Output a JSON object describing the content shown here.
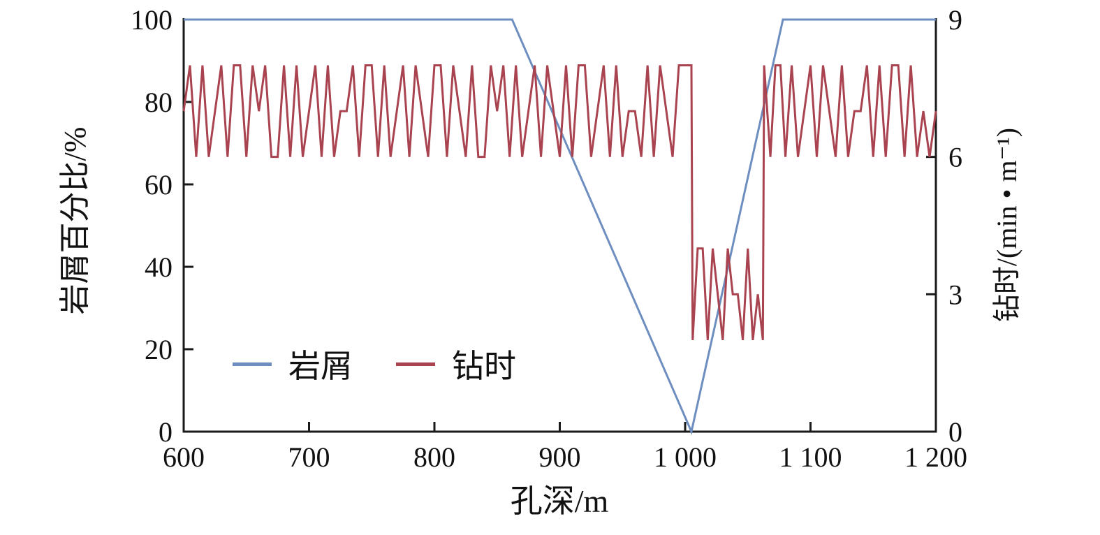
{
  "chart_data": {
    "type": "line",
    "title": "",
    "xlabel": "孔深/m",
    "ylabel_left": "岩屑百分比/%",
    "ylabel_right": "钻时/(min • m⁻¹)",
    "x_range": [
      600,
      1200
    ],
    "y_left_range": [
      0,
      100
    ],
    "y_right_range": [
      0,
      9
    ],
    "x_ticks": [
      600,
      700,
      800,
      900,
      1000,
      1100,
      1200
    ],
    "x_tick_labels": [
      "600",
      "700",
      "800",
      "900",
      "1 000",
      "1 100",
      "1 200"
    ],
    "y_left_ticks": [
      0,
      20,
      40,
      60,
      80,
      100
    ],
    "y_left_tick_labels": [
      "0",
      "20",
      "40",
      "60",
      "80",
      "100"
    ],
    "y_right_ticks": [
      0,
      3,
      6,
      9
    ],
    "y_right_tick_labels": [
      "0",
      "3",
      "6",
      "9"
    ],
    "grid": false,
    "legend_position": "inside-lower-left",
    "series": [
      {
        "id": "cuttings",
        "name": "岩屑",
        "axis": "left",
        "unit": "%",
        "color": "#6e8ec0",
        "x": [
          600,
          862,
          1005,
          1078,
          1200
        ],
        "y": [
          100,
          100,
          0,
          100,
          100
        ]
      },
      {
        "id": "drilling-time",
        "name": "钻时",
        "axis": "right",
        "unit": "min/m",
        "color": "#a8434f",
        "x": [
          600,
          605,
          610,
          615,
          620,
          625,
          630,
          635,
          640,
          645,
          650,
          655,
          660,
          665,
          670,
          675,
          680,
          685,
          690,
          695,
          700,
          705,
          710,
          715,
          720,
          725,
          730,
          735,
          740,
          745,
          750,
          755,
          760,
          765,
          770,
          775,
          780,
          785,
          790,
          795,
          800,
          805,
          810,
          815,
          820,
          825,
          830,
          835,
          840,
          845,
          850,
          855,
          860,
          865,
          870,
          875,
          880,
          885,
          890,
          895,
          900,
          905,
          910,
          915,
          920,
          925,
          930,
          935,
          940,
          945,
          950,
          955,
          960,
          965,
          970,
          975,
          980,
          985,
          990,
          995,
          1000,
          1005,
          1006,
          1010,
          1014,
          1018,
          1022,
          1026,
          1030,
          1034,
          1038,
          1042,
          1046,
          1050,
          1054,
          1058,
          1062,
          1063,
          1068,
          1072,
          1076,
          1080,
          1085,
          1090,
          1095,
          1100,
          1105,
          1110,
          1115,
          1120,
          1125,
          1130,
          1135,
          1140,
          1145,
          1150,
          1155,
          1160,
          1165,
          1170,
          1175,
          1180,
          1185,
          1190,
          1195,
          1200
        ],
        "y": [
          7,
          8,
          6,
          8,
          6,
          7,
          8,
          6,
          8,
          8,
          6,
          8,
          7,
          8,
          6,
          6,
          8,
          6,
          8,
          6,
          7,
          8,
          6,
          8,
          6,
          7,
          7,
          8,
          6,
          8,
          8,
          6,
          8,
          6,
          7,
          8,
          6,
          8,
          7,
          6,
          8,
          8,
          6,
          8,
          7,
          6,
          8,
          6,
          6,
          8,
          7,
          8,
          6,
          8,
          6,
          7,
          8,
          6,
          8,
          7,
          6,
          8,
          6,
          8,
          8,
          6,
          7,
          8,
          6,
          8,
          6,
          7,
          7,
          6,
          8,
          6,
          8,
          7,
          6,
          8,
          8,
          8,
          2,
          4,
          4,
          2,
          4,
          3,
          2,
          4,
          3,
          3,
          2,
          4,
          2,
          3,
          2,
          8,
          6,
          8,
          8,
          6,
          8,
          6,
          7,
          8,
          6,
          8,
          7,
          6,
          8,
          6,
          7,
          7,
          8,
          6,
          8,
          6,
          8,
          8,
          6,
          8,
          6,
          7,
          6,
          7
        ]
      }
    ]
  }
}
